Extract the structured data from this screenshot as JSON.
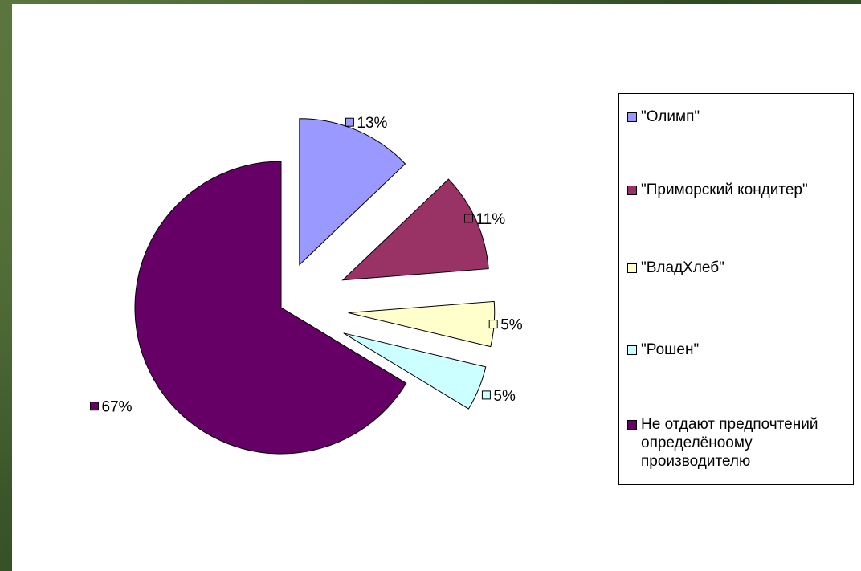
{
  "colors": {
    "slide_background": "#3f5a2a",
    "chart_background": "#ffffff"
  },
  "chart_data": {
    "type": "pie",
    "exploded": true,
    "legend_position": "right",
    "title": "",
    "slices": [
      {
        "label": "\"Олимп\"",
        "value": 13,
        "data_label": "13%",
        "color": "#9999ff"
      },
      {
        "label": "\"Приморский кондитер\"",
        "value": 11,
        "data_label": "11%",
        "color": "#993366"
      },
      {
        "label": "\"ВладХлеб\"",
        "value": 5,
        "data_label": "5%",
        "color": "#ffffcc"
      },
      {
        "label": "\"Рошен\"",
        "value": 5,
        "data_label": "5%",
        "color": "#ccffff"
      },
      {
        "label": "Не отдают предпочтений определёноому производителю",
        "value": 67,
        "data_label": "67%",
        "color": "#660066"
      }
    ]
  }
}
